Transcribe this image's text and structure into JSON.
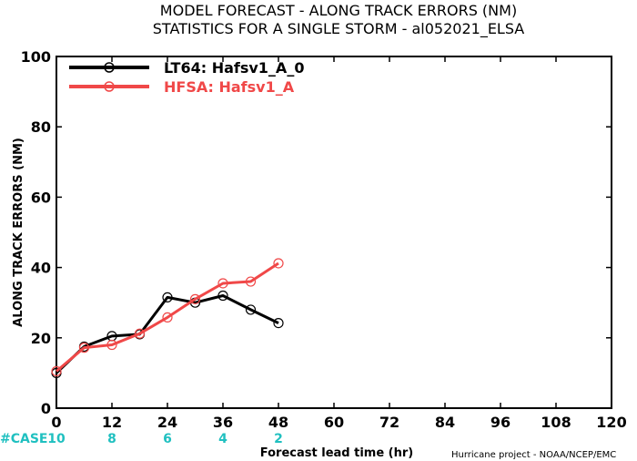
{
  "chart_data": {
    "type": "line",
    "title_line1": "MODEL FORECAST - ALONG TRACK ERRORS (NM)",
    "title_line2": "STATISTICS FOR A SINGLE STORM - al052021_ELSA",
    "xlabel": "Forecast lead time (hr)",
    "ylabel": "ALONG TRACK ERRORS (NM)",
    "xlim": [
      0,
      120
    ],
    "ylim": [
      0,
      100
    ],
    "xticks": [
      0,
      12,
      24,
      36,
      48,
      60,
      72,
      84,
      96,
      108,
      120
    ],
    "yticks": [
      0,
      20,
      40,
      60,
      80,
      100
    ],
    "grid": false,
    "legend_position": "top-left",
    "series": [
      {
        "name": "LT64: Hafsv1_A_0",
        "color": "#000000",
        "x": [
          0,
          6,
          12,
          18,
          24,
          30,
          36,
          42,
          48
        ],
        "y": [
          10,
          17.5,
          20.5,
          21,
          31.5,
          30,
          32,
          28,
          24.2
        ]
      },
      {
        "name": "HFSA: Hafsv1_A",
        "color": "#f04848",
        "x": [
          0,
          6,
          12,
          18,
          24,
          30,
          36,
          42,
          48
        ],
        "y": [
          10.5,
          17.2,
          18,
          21.2,
          25.8,
          31,
          35.5,
          36,
          41.2
        ]
      }
    ],
    "cases": {
      "label": "#CASE",
      "color": "#20c0c0",
      "x": [
        0,
        12,
        24,
        36,
        48
      ],
      "values": [
        "10",
        "8",
        "6",
        "4",
        "2"
      ]
    },
    "credit": "Hurricane project - NOAA/NCEP/EMC"
  }
}
